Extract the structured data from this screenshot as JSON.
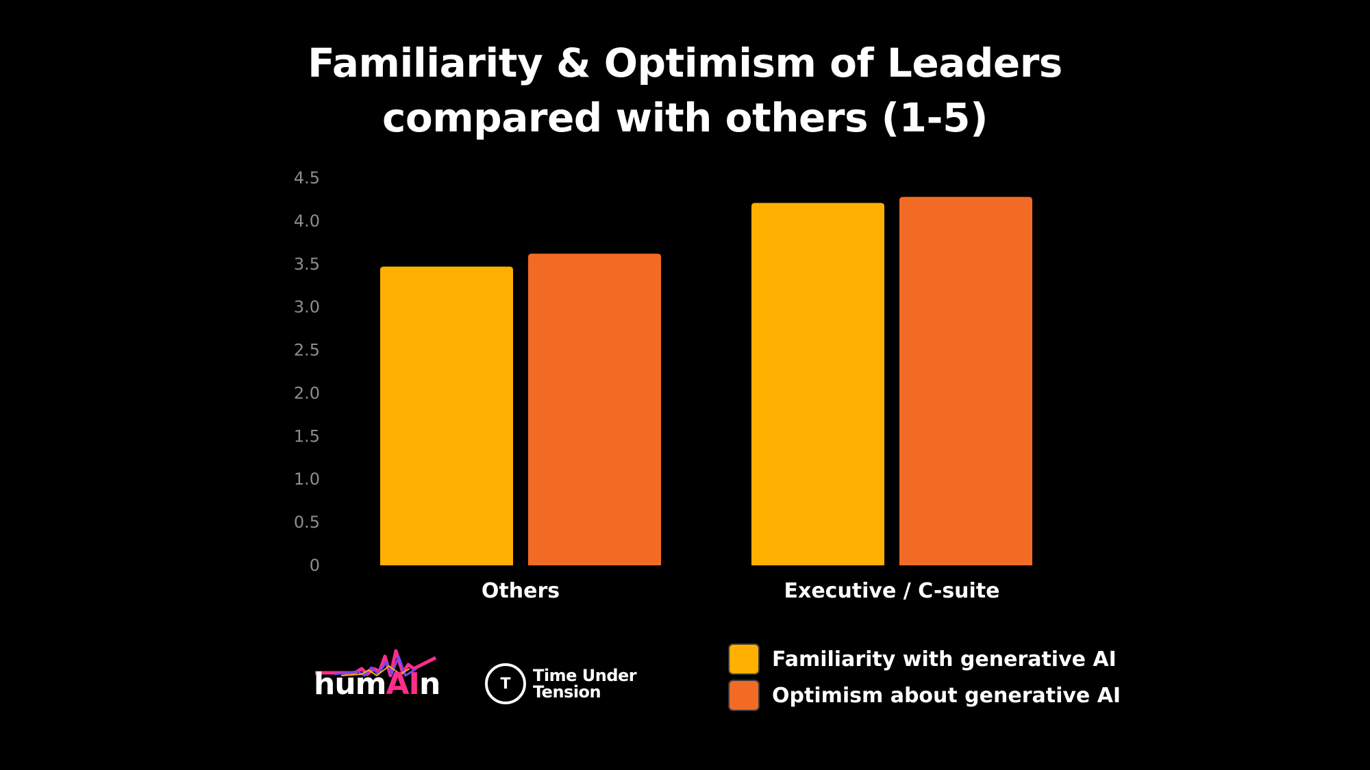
{
  "chart_data": {
    "type": "bar",
    "title_lines": [
      "Familiarity & Optimism of Leaders",
      "compared with others (1-5)"
    ],
    "categories": [
      "Others",
      "Executive / C-suite"
    ],
    "series": [
      {
        "name": "Familiarity with generative AI",
        "color": "#FFB000",
        "values": [
          3.47,
          4.21
        ]
      },
      {
        "name": "Optimism about generative AI",
        "color": "#F26B25",
        "values": [
          3.62,
          4.28
        ]
      }
    ],
    "ylim": [
      0,
      4.5
    ],
    "y_ticks": [
      "0",
      "0.5",
      "1.0",
      "1.5",
      "2.0",
      "2.5",
      "3.0",
      "3.5",
      "4.0",
      "4.5"
    ],
    "grid": false,
    "legend_position": "bottom-right"
  },
  "logos": {
    "human": {
      "prefix": "hum",
      "highlight": "AI",
      "suffix": "n",
      "accent": "#ff2d8a"
    },
    "tut": {
      "icon_text": "T",
      "line1": "Time Under",
      "line2": "Tension"
    }
  }
}
